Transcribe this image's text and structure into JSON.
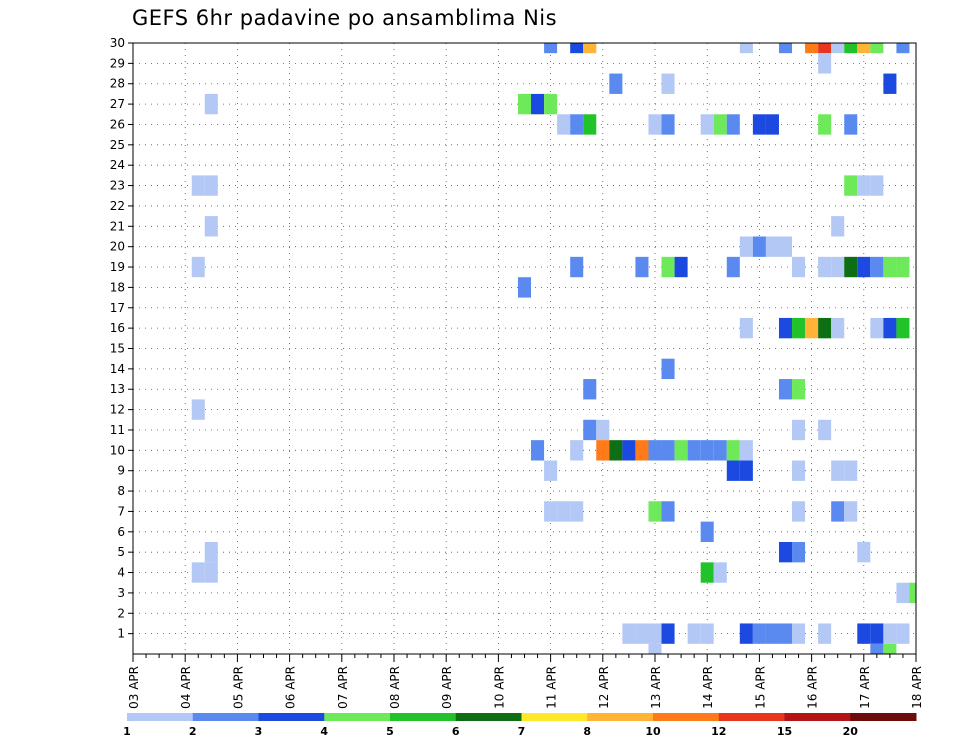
{
  "chart_data": {
    "type": "heatmap",
    "title": "GEFS 6hr padavine po ansamblima Nis",
    "xlabel": "",
    "ylabel": "",
    "x_ticks": [
      "03 APR",
      "04 APR",
      "05 APR",
      "06 APR",
      "07 APR",
      "08 APR",
      "09 APR",
      "10 APR",
      "11 APR",
      "12 APR",
      "13 APR",
      "14 APR",
      "15 APR",
      "16 APR",
      "17 APR",
      "18 APR"
    ],
    "x_range": [
      "03 APR 00Z",
      "18 APR 00Z"
    ],
    "x_step_hours": 6,
    "y_ticks": [
      1,
      2,
      3,
      4,
      5,
      6,
      7,
      8,
      9,
      10,
      11,
      12,
      13,
      14,
      15,
      16,
      17,
      18,
      19,
      20,
      21,
      22,
      23,
      24,
      25,
      26,
      27,
      28,
      29,
      30
    ],
    "y_range": [
      0,
      30
    ],
    "grid": true,
    "colorbar": {
      "labels": [
        "1",
        "2",
        "3",
        "4",
        "5",
        "6",
        "7",
        "8",
        "10",
        "12",
        "15",
        "20"
      ],
      "colors": [
        "#b4c8f5",
        "#5a8af0",
        "#1c4ae0",
        "#6ee95a",
        "#22c22a",
        "#0d6e14",
        "#ffe82a",
        "#ffb437",
        "#ff7a18",
        "#e8361e",
        "#b31414",
        "#6e0c0c"
      ]
    },
    "cells": [
      {
        "m": 30,
        "day": "11 APR",
        "h": 0,
        "v": 2
      },
      {
        "m": 30,
        "day": "11 APR",
        "h": 12,
        "v": 3
      },
      {
        "m": 30,
        "day": "11 APR",
        "h": 18,
        "v": 8
      },
      {
        "m": 30,
        "day": "14 APR",
        "h": 18,
        "v": 1
      },
      {
        "m": 30,
        "day": "15 APR",
        "h": 12,
        "v": 2
      },
      {
        "m": 30,
        "day": "16 APR",
        "h": 0,
        "v": 10
      },
      {
        "m": 30,
        "day": "16 APR",
        "h": 6,
        "v": 12
      },
      {
        "m": 30,
        "day": "16 APR",
        "h": 12,
        "v": 1
      },
      {
        "m": 30,
        "day": "16 APR",
        "h": 18,
        "v": 5
      },
      {
        "m": 30,
        "day": "17 APR",
        "h": 0,
        "v": 8
      },
      {
        "m": 30,
        "day": "17 APR",
        "h": 6,
        "v": 4
      },
      {
        "m": 30,
        "day": "17 APR",
        "h": 18,
        "v": 2
      },
      {
        "m": 29,
        "day": "16 APR",
        "h": 6,
        "v": 1
      },
      {
        "m": 28,
        "day": "12 APR",
        "h": 6,
        "v": 2
      },
      {
        "m": 28,
        "day": "13 APR",
        "h": 6,
        "v": 1
      },
      {
        "m": 28,
        "day": "17 APR",
        "h": 12,
        "v": 3
      },
      {
        "m": 27,
        "day": "04 APR",
        "h": 12,
        "v": 1
      },
      {
        "m": 27,
        "day": "10 APR",
        "h": 12,
        "v": 4
      },
      {
        "m": 27,
        "day": "10 APR",
        "h": 18,
        "v": 3
      },
      {
        "m": 27,
        "day": "11 APR",
        "h": 0,
        "v": 4
      },
      {
        "m": 26,
        "day": "11 APR",
        "h": 6,
        "v": 1
      },
      {
        "m": 26,
        "day": "11 APR",
        "h": 12,
        "v": 2
      },
      {
        "m": 26,
        "day": "11 APR",
        "h": 18,
        "v": 5
      },
      {
        "m": 26,
        "day": "13 APR",
        "h": 0,
        "v": 1
      },
      {
        "m": 26,
        "day": "13 APR",
        "h": 6,
        "v": 2
      },
      {
        "m": 26,
        "day": "14 APR",
        "h": 0,
        "v": 1
      },
      {
        "m": 26,
        "day": "14 APR",
        "h": 6,
        "v": 4
      },
      {
        "m": 26,
        "day": "14 APR",
        "h": 12,
        "v": 2
      },
      {
        "m": 26,
        "day": "15 APR",
        "h": 0,
        "v": 3
      },
      {
        "m": 26,
        "day": "15 APR",
        "h": 6,
        "v": 3
      },
      {
        "m": 26,
        "day": "16 APR",
        "h": 6,
        "v": 4
      },
      {
        "m": 26,
        "day": "16 APR",
        "h": 18,
        "v": 2
      },
      {
        "m": 23,
        "day": "04 APR",
        "h": 6,
        "v": 1
      },
      {
        "m": 23,
        "day": "04 APR",
        "h": 12,
        "v": 1
      },
      {
        "m": 23,
        "day": "16 APR",
        "h": 18,
        "v": 4
      },
      {
        "m": 23,
        "day": "17 APR",
        "h": 0,
        "v": 1
      },
      {
        "m": 23,
        "day": "17 APR",
        "h": 6,
        "v": 1
      },
      {
        "m": 21,
        "day": "04 APR",
        "h": 12,
        "v": 1
      },
      {
        "m": 21,
        "day": "16 APR",
        "h": 12,
        "v": 1
      },
      {
        "m": 20,
        "day": "14 APR",
        "h": 18,
        "v": 1
      },
      {
        "m": 20,
        "day": "15 APR",
        "h": 0,
        "v": 2
      },
      {
        "m": 20,
        "day": "15 APR",
        "h": 6,
        "v": 1
      },
      {
        "m": 20,
        "day": "15 APR",
        "h": 12,
        "v": 1
      },
      {
        "m": 19,
        "day": "04 APR",
        "h": 6,
        "v": 1
      },
      {
        "m": 19,
        "day": "11 APR",
        "h": 12,
        "v": 2
      },
      {
        "m": 19,
        "day": "12 APR",
        "h": 18,
        "v": 2
      },
      {
        "m": 19,
        "day": "13 APR",
        "h": 6,
        "v": 4
      },
      {
        "m": 19,
        "day": "13 APR",
        "h": 12,
        "v": 3
      },
      {
        "m": 19,
        "day": "14 APR",
        "h": 12,
        "v": 2
      },
      {
        "m": 19,
        "day": "15 APR",
        "h": 18,
        "v": 1
      },
      {
        "m": 19,
        "day": "16 APR",
        "h": 6,
        "v": 1
      },
      {
        "m": 19,
        "day": "16 APR",
        "h": 12,
        "v": 1
      },
      {
        "m": 19,
        "day": "16 APR",
        "h": 18,
        "v": 6
      },
      {
        "m": 19,
        "day": "17 APR",
        "h": 0,
        "v": 3
      },
      {
        "m": 19,
        "day": "17 APR",
        "h": 6,
        "v": 2
      },
      {
        "m": 19,
        "day": "17 APR",
        "h": 12,
        "v": 4
      },
      {
        "m": 19,
        "day": "17 APR",
        "h": 18,
        "v": 4
      },
      {
        "m": 18,
        "day": "10 APR",
        "h": 12,
        "v": 2
      },
      {
        "m": 16,
        "day": "14 APR",
        "h": 18,
        "v": 1
      },
      {
        "m": 16,
        "day": "15 APR",
        "h": 12,
        "v": 3
      },
      {
        "m": 16,
        "day": "15 APR",
        "h": 18,
        "v": 5
      },
      {
        "m": 16,
        "day": "16 APR",
        "h": 0,
        "v": 8
      },
      {
        "m": 16,
        "day": "16 APR",
        "h": 6,
        "v": 6
      },
      {
        "m": 16,
        "day": "16 APR",
        "h": 12,
        "v": 1
      },
      {
        "m": 16,
        "day": "17 APR",
        "h": 6,
        "v": 1
      },
      {
        "m": 16,
        "day": "17 APR",
        "h": 12,
        "v": 3
      },
      {
        "m": 16,
        "day": "17 APR",
        "h": 18,
        "v": 5
      },
      {
        "m": 14,
        "day": "13 APR",
        "h": 6,
        "v": 2
      },
      {
        "m": 13,
        "day": "11 APR",
        "h": 18,
        "v": 2
      },
      {
        "m": 13,
        "day": "15 APR",
        "h": 12,
        "v": 2
      },
      {
        "m": 13,
        "day": "15 APR",
        "h": 18,
        "v": 4
      },
      {
        "m": 12,
        "day": "04 APR",
        "h": 6,
        "v": 1
      },
      {
        "m": 11,
        "day": "11 APR",
        "h": 18,
        "v": 2
      },
      {
        "m": 11,
        "day": "12 APR",
        "h": 0,
        "v": 1
      },
      {
        "m": 11,
        "day": "15 APR",
        "h": 18,
        "v": 1
      },
      {
        "m": 11,
        "day": "16 APR",
        "h": 6,
        "v": 1
      },
      {
        "m": 10,
        "day": "10 APR",
        "h": 18,
        "v": 2
      },
      {
        "m": 10,
        "day": "11 APR",
        "h": 12,
        "v": 1
      },
      {
        "m": 10,
        "day": "12 APR",
        "h": 0,
        "v": 10
      },
      {
        "m": 10,
        "day": "12 APR",
        "h": 6,
        "v": 6
      },
      {
        "m": 10,
        "day": "12 APR",
        "h": 12,
        "v": 3
      },
      {
        "m": 10,
        "day": "12 APR",
        "h": 18,
        "v": 10
      },
      {
        "m": 10,
        "day": "13 APR",
        "h": 0,
        "v": 2
      },
      {
        "m": 10,
        "day": "13 APR",
        "h": 6,
        "v": 2
      },
      {
        "m": 10,
        "day": "13 APR",
        "h": 12,
        "v": 4
      },
      {
        "m": 10,
        "day": "13 APR",
        "h": 18,
        "v": 2
      },
      {
        "m": 10,
        "day": "14 APR",
        "h": 0,
        "v": 2
      },
      {
        "m": 10,
        "day": "14 APR",
        "h": 6,
        "v": 2
      },
      {
        "m": 10,
        "day": "14 APR",
        "h": 12,
        "v": 4
      },
      {
        "m": 10,
        "day": "14 APR",
        "h": 18,
        "v": 1
      },
      {
        "m": 9,
        "day": "11 APR",
        "h": 0,
        "v": 1
      },
      {
        "m": 9,
        "day": "14 APR",
        "h": 12,
        "v": 3
      },
      {
        "m": 9,
        "day": "14 APR",
        "h": 18,
        "v": 3
      },
      {
        "m": 9,
        "day": "15 APR",
        "h": 18,
        "v": 1
      },
      {
        "m": 9,
        "day": "16 APR",
        "h": 12,
        "v": 1
      },
      {
        "m": 9,
        "day": "16 APR",
        "h": 18,
        "v": 1
      },
      {
        "m": 7,
        "day": "11 APR",
        "h": 0,
        "v": 1
      },
      {
        "m": 7,
        "day": "11 APR",
        "h": 6,
        "v": 1
      },
      {
        "m": 7,
        "day": "11 APR",
        "h": 12,
        "v": 1
      },
      {
        "m": 7,
        "day": "13 APR",
        "h": 0,
        "v": 4
      },
      {
        "m": 7,
        "day": "13 APR",
        "h": 6,
        "v": 2
      },
      {
        "m": 7,
        "day": "15 APR",
        "h": 18,
        "v": 1
      },
      {
        "m": 7,
        "day": "16 APR",
        "h": 12,
        "v": 2
      },
      {
        "m": 7,
        "day": "16 APR",
        "h": 18,
        "v": 1
      },
      {
        "m": 6,
        "day": "14 APR",
        "h": 0,
        "v": 2
      },
      {
        "m": 5,
        "day": "04 APR",
        "h": 12,
        "v": 1
      },
      {
        "m": 5,
        "day": "15 APR",
        "h": 12,
        "v": 3
      },
      {
        "m": 5,
        "day": "15 APR",
        "h": 18,
        "v": 2
      },
      {
        "m": 5,
        "day": "17 APR",
        "h": 0,
        "v": 1
      },
      {
        "m": 4,
        "day": "04 APR",
        "h": 6,
        "v": 1
      },
      {
        "m": 4,
        "day": "04 APR",
        "h": 12,
        "v": 1
      },
      {
        "m": 4,
        "day": "14 APR",
        "h": 0,
        "v": 5
      },
      {
        "m": 4,
        "day": "14 APR",
        "h": 6,
        "v": 1
      },
      {
        "m": 3,
        "day": "17 APR",
        "h": 18,
        "v": 1
      },
      {
        "m": 3,
        "day": "18 APR",
        "h": 0,
        "v": 4
      },
      {
        "m": 1,
        "day": "12 APR",
        "h": 12,
        "v": 1
      },
      {
        "m": 1,
        "day": "12 APR",
        "h": 18,
        "v": 1
      },
      {
        "m": 1,
        "day": "13 APR",
        "h": 0,
        "v": 1
      },
      {
        "m": 1,
        "day": "13 APR",
        "h": 6,
        "v": 3
      },
      {
        "m": 1,
        "day": "13 APR",
        "h": 18,
        "v": 1
      },
      {
        "m": 1,
        "day": "14 APR",
        "h": 0,
        "v": 1
      },
      {
        "m": 1,
        "day": "14 APR",
        "h": 18,
        "v": 3
      },
      {
        "m": 1,
        "day": "15 APR",
        "h": 0,
        "v": 2
      },
      {
        "m": 1,
        "day": "15 APR",
        "h": 6,
        "v": 2
      },
      {
        "m": 1,
        "day": "15 APR",
        "h": 12,
        "v": 2
      },
      {
        "m": 1,
        "day": "15 APR",
        "h": 18,
        "v": 1
      },
      {
        "m": 1,
        "day": "16 APR",
        "h": 6,
        "v": 1
      },
      {
        "m": 1,
        "day": "17 APR",
        "h": 0,
        "v": 3
      },
      {
        "m": 1,
        "day": "17 APR",
        "h": 6,
        "v": 3
      },
      {
        "m": 1,
        "day": "17 APR",
        "h": 12,
        "v": 1
      },
      {
        "m": 1,
        "day": "17 APR",
        "h": 18,
        "v": 1
      },
      {
        "m": 0,
        "day": "13 APR",
        "h": 0,
        "v": 1
      },
      {
        "m": 0,
        "day": "17 APR",
        "h": 6,
        "v": 2
      },
      {
        "m": 0,
        "day": "17 APR",
        "h": 12,
        "v": 4
      }
    ]
  }
}
